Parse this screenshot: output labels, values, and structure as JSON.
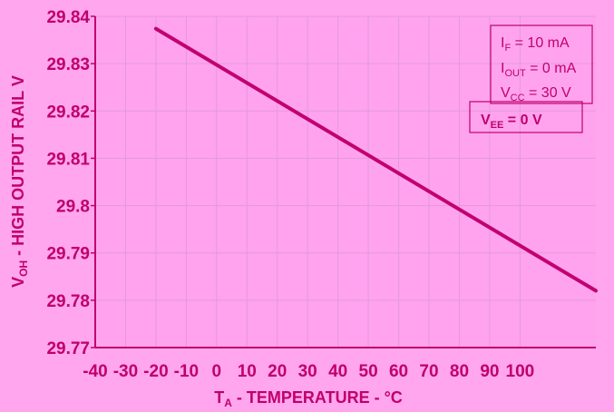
{
  "colors": {
    "background": "#ffa6ef",
    "plot_area": "#ffa3ef",
    "line": "#c2006f",
    "grid": "#e39ad8",
    "text": "#c0006a"
  },
  "chart_data": {
    "type": "line",
    "xlabel": "T_A - TEMPERATURE - °C",
    "ylabel": "V_OH - HIGH OUTPUT RAIL V",
    "xlim": [
      -40,
      125
    ],
    "ylim": [
      29.77,
      29.84
    ],
    "x_ticks": [
      "-40",
      "-30",
      "-20",
      "-10",
      "0",
      "10",
      "20",
      "30",
      "40",
      "50",
      "60",
      "70",
      "80",
      "90",
      "100"
    ],
    "y_ticks": [
      "29.84",
      "29.83",
      "29.82",
      "29.81",
      "29.8",
      "29.79",
      "29.78",
      "29.77"
    ],
    "grid": true,
    "series": [
      {
        "x": [
          -20,
          125
        ],
        "y": [
          29.8374,
          29.782
        ]
      }
    ],
    "annotations": {
      "conditions": [
        {
          "main": "I",
          "sub": "F",
          "rest": " = 10 mA"
        },
        {
          "main": "I",
          "sub": "OUT",
          "rest": " = 0 mA"
        },
        {
          "main": "V",
          "sub": "CC",
          "rest": "  = 30 V"
        },
        {
          "main": "V",
          "sub": "EE",
          "rest": "  = 0 V"
        }
      ]
    }
  }
}
